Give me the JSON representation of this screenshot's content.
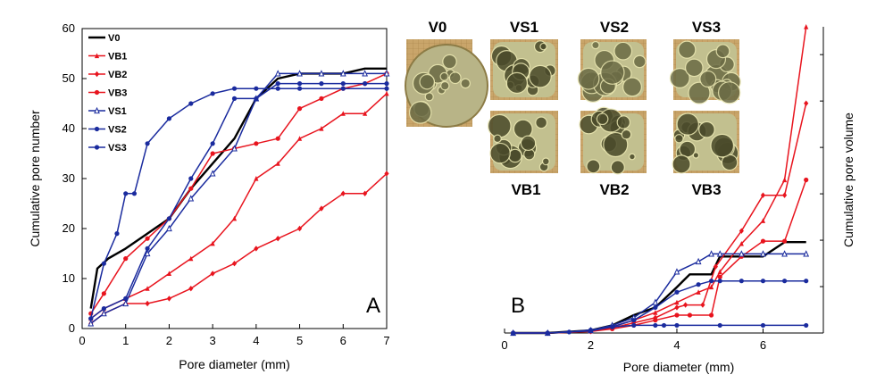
{
  "chart_data": [
    {
      "panel": "A",
      "type": "line",
      "xlabel": "Pore diameter (mm)",
      "ylabel": "Cumulative pore number",
      "xlim": [
        0,
        7
      ],
      "ylim": [
        0,
        60
      ],
      "xticks": [
        "0",
        "1",
        "2",
        "3",
        "4",
        "5",
        "6",
        "7"
      ],
      "yticks": [
        "0",
        "10",
        "20",
        "30",
        "40",
        "50",
        "60"
      ],
      "legend_position": "top-left",
      "series": [
        {
          "name": "V0",
          "color": "#000000",
          "marker": "none",
          "x": [
            0.2,
            0.35,
            0.6,
            1.0,
            1.5,
            2.0,
            2.5,
            3.0,
            3.5,
            4.0,
            4.5,
            5.0,
            5.5,
            6.0,
            6.5,
            7.0
          ],
          "y": [
            4,
            12,
            14,
            16,
            19,
            22,
            28,
            33,
            38,
            46,
            50,
            51,
            51,
            51,
            52,
            52
          ]
        },
        {
          "name": "VB1",
          "color": "#e8141e",
          "marker": "triangle",
          "x": [
            0.2,
            0.5,
            1.0,
            1.5,
            2.0,
            2.5,
            3.0,
            3.5,
            4.0,
            4.5,
            5.0,
            5.5,
            6.0,
            6.5,
            7.0
          ],
          "y": [
            2,
            4,
            6,
            8,
            11,
            14,
            17,
            22,
            30,
            33,
            38,
            40,
            43,
            43,
            47
          ]
        },
        {
          "name": "VB2",
          "color": "#e8141e",
          "marker": "diamond",
          "x": [
            0.2,
            0.5,
            1.0,
            1.5,
            2.0,
            2.5,
            3.0,
            3.5,
            4.0,
            4.5,
            5.0,
            5.5,
            6.0,
            6.5,
            7.0
          ],
          "y": [
            1,
            3,
            5,
            5,
            6,
            8,
            11,
            13,
            16,
            18,
            20,
            24,
            27,
            27,
            31
          ]
        },
        {
          "name": "VB3",
          "color": "#e8141e",
          "marker": "circle",
          "x": [
            0.2,
            0.5,
            1.0,
            1.5,
            2.0,
            2.5,
            3.0,
            3.5,
            4.0,
            4.5,
            5.0,
            5.5,
            6.0,
            6.5,
            7.0
          ],
          "y": [
            3,
            7,
            14,
            18,
            22,
            28,
            35,
            36,
            37,
            38,
            44,
            46,
            48,
            49,
            51
          ]
        },
        {
          "name": "VS1",
          "color": "#1a2b9e",
          "marker": "triangle-open",
          "x": [
            0.2,
            0.5,
            1.0,
            1.5,
            2.0,
            2.5,
            3.0,
            3.5,
            4.0,
            4.5,
            5.0,
            5.5,
            6.0,
            6.5,
            7.0
          ],
          "y": [
            1,
            3,
            5,
            15,
            20,
            26,
            31,
            36,
            46,
            51,
            51,
            51,
            51,
            51,
            51
          ]
        },
        {
          "name": "VS2",
          "color": "#1a2b9e",
          "marker": "circle",
          "x": [
            0.2,
            0.5,
            1.0,
            1.5,
            2.0,
            2.5,
            3.0,
            3.5,
            4.0,
            4.5,
            5.0,
            5.5,
            6.0,
            6.5,
            7.0
          ],
          "y": [
            2,
            4,
            6,
            16,
            22,
            30,
            37,
            46,
            46,
            49,
            49,
            49,
            49,
            49,
            49
          ]
        },
        {
          "name": "VS3",
          "color": "#1a2b9e",
          "marker": "circle",
          "x": [
            0.2,
            0.5,
            0.8,
            1.0,
            1.2,
            1.5,
            2.0,
            2.5,
            3.0,
            3.5,
            4.0,
            4.5,
            5.0,
            6.0,
            7.0
          ],
          "y": [
            2,
            13,
            19,
            27,
            27,
            37,
            42,
            45,
            47,
            48,
            48,
            48,
            48,
            48,
            48
          ]
        }
      ]
    },
    {
      "panel": "B",
      "type": "line",
      "xlabel": "Pore diameter (mm)",
      "ylabel": "Cumulative pore volume",
      "xlim": [
        0,
        7.4
      ],
      "ylim": [
        0,
        60
      ],
      "xticks": [
        "0",
        "2",
        "4",
        "6"
      ],
      "series": [
        {
          "name": "V0",
          "color": "#000000",
          "marker": "none",
          "x": [
            0.2,
            1.0,
            2.0,
            2.5,
            3.0,
            3.5,
            4.0,
            4.3,
            4.8,
            5.0,
            5.5,
            6.0,
            6.5,
            7.0
          ],
          "y": [
            0,
            0,
            0.5,
            1.5,
            3.5,
            5,
            9,
            11.5,
            11.5,
            15,
            15,
            15,
            17.8,
            17.8
          ]
        },
        {
          "name": "VB1",
          "color": "#e8141e",
          "marker": "triangle",
          "x": [
            0.2,
            1.0,
            2.0,
            2.5,
            3.0,
            3.5,
            4.0,
            4.5,
            4.8,
            5.0,
            5.5,
            6.0,
            6.5,
            7.0
          ],
          "y": [
            0,
            0,
            0.4,
            1.2,
            2.5,
            4,
            6,
            8,
            9,
            12,
            17.5,
            22,
            30,
            60
          ]
        },
        {
          "name": "VB2",
          "color": "#e8141e",
          "marker": "diamond",
          "x": [
            0.2,
            1.0,
            2.0,
            2.5,
            3.0,
            3.5,
            4.0,
            4.2,
            4.6,
            4.9,
            5.5,
            6.0,
            6.5,
            7.0
          ],
          "y": [
            0,
            0,
            0.3,
            1,
            2,
            3,
            5,
            5.5,
            5.5,
            13,
            20,
            27,
            27,
            45
          ]
        },
        {
          "name": "VB3",
          "color": "#e8141e",
          "marker": "circle",
          "x": [
            0.2,
            1.0,
            2.0,
            2.5,
            3.0,
            3.5,
            4.0,
            4.3,
            4.8,
            5.0,
            5.5,
            6.0,
            6.5,
            7.0
          ],
          "y": [
            0,
            0,
            0.3,
            0.8,
            1.5,
            2.5,
            3.5,
            3.5,
            3.5,
            11,
            15,
            18,
            18,
            30
          ]
        },
        {
          "name": "VS1",
          "color": "#1a2b9e",
          "marker": "triangle-open",
          "x": [
            0.2,
            1.0,
            2.0,
            2.5,
            3.0,
            3.5,
            4.0,
            4.5,
            4.8,
            5.0,
            5.5,
            6.0,
            6.5,
            7.0
          ],
          "y": [
            0,
            0,
            0.5,
            1.5,
            3,
            6,
            12,
            14,
            15.5,
            15.5,
            15.5,
            15.5,
            15.5,
            15.5
          ]
        },
        {
          "name": "VS2",
          "color": "#1a2b9e",
          "marker": "circle",
          "x": [
            0.2,
            1.0,
            2.0,
            2.5,
            3.0,
            3.5,
            4.0,
            4.5,
            4.8,
            5.0,
            5.5,
            6.0,
            6.5,
            7.0
          ],
          "y": [
            0,
            0,
            0.4,
            1.2,
            2.5,
            5,
            8,
            9.5,
            10.2,
            10.2,
            10.2,
            10.2,
            10.2,
            10.2
          ]
        },
        {
          "name": "VS3",
          "color": "#1a2b9e",
          "marker": "circle",
          "x": [
            0.2,
            1.0,
            1.5,
            2.0,
            2.5,
            3.0,
            3.5,
            3.7,
            4.0,
            5.0,
            6.0,
            7.0
          ],
          "y": [
            0,
            0,
            0.2,
            0.6,
            1.2,
            1.5,
            1.5,
            1.5,
            1.5,
            1.5,
            1.5,
            1.5
          ]
        }
      ]
    }
  ],
  "photos": {
    "top_labels": [
      "V0",
      "VS1",
      "VS2",
      "VS3"
    ],
    "bottom_labels": [
      "VB1",
      "VB2",
      "VB3"
    ]
  }
}
